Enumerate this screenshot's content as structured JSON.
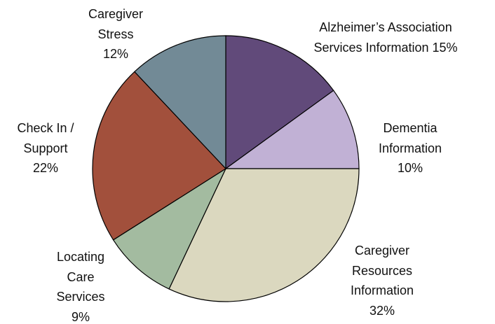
{
  "chart_data": {
    "type": "pie",
    "categories": [
      "Alzheimer’s Association Services Information",
      "Dementia Information",
      "Caregiver Resources Information",
      "Locating Care Services",
      "Check In / Support",
      "Caregiver Stress"
    ],
    "values": [
      15,
      10,
      32,
      9,
      22,
      12
    ],
    "value_labels": [
      "15%",
      "10%",
      "32%",
      "9%",
      "22%",
      "12%"
    ],
    "colors": [
      "#614a7a",
      "#c1b1d5",
      "#dbd8bf",
      "#a3bba0",
      "#a2503c",
      "#728a96"
    ]
  }
}
